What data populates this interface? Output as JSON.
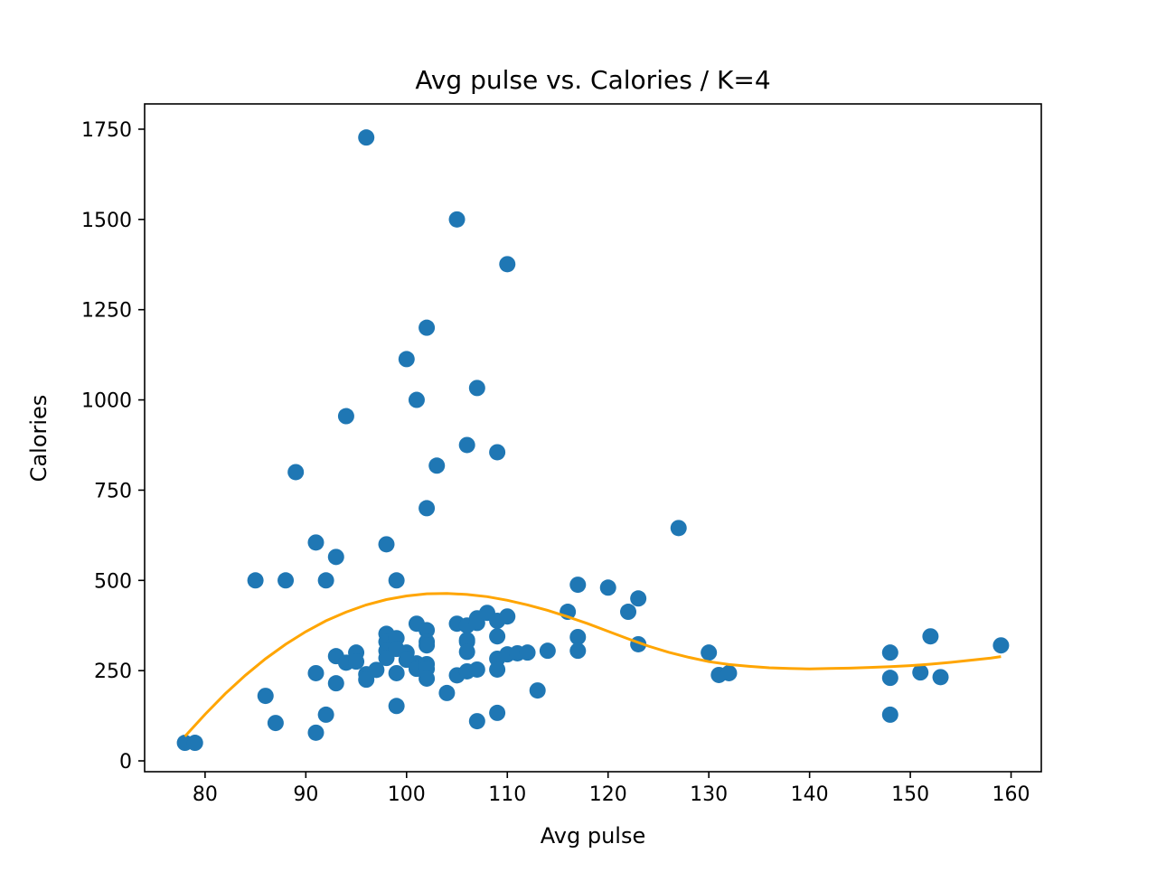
{
  "chart_data": {
    "type": "scatter",
    "title": "Avg pulse vs. Calories / K=4",
    "xlabel": "Avg pulse",
    "ylabel": "Calories",
    "xlim": [
      74,
      163
    ],
    "ylim": [
      -30,
      1820
    ],
    "xticks": [
      80,
      90,
      100,
      110,
      120,
      130,
      140,
      150,
      160
    ],
    "yticks": [
      0,
      250,
      500,
      750,
      1000,
      1250,
      1500,
      1750
    ],
    "grid": false,
    "colors": {
      "points": "#1f77b4",
      "curve": "#ffa500",
      "axes": "#000000"
    },
    "points": [
      [
        78,
        50
      ],
      [
        79,
        50
      ],
      [
        85,
        500
      ],
      [
        86,
        180
      ],
      [
        87,
        105
      ],
      [
        88,
        500
      ],
      [
        89,
        800
      ],
      [
        91,
        605
      ],
      [
        91,
        243
      ],
      [
        91,
        78
      ],
      [
        92,
        500
      ],
      [
        92,
        128
      ],
      [
        93,
        565
      ],
      [
        93,
        290
      ],
      [
        93,
        215
      ],
      [
        94,
        955
      ],
      [
        94,
        272
      ],
      [
        95,
        300
      ],
      [
        95,
        275
      ],
      [
        96,
        1727
      ],
      [
        96,
        240
      ],
      [
        96,
        225
      ],
      [
        97,
        252
      ],
      [
        98,
        600
      ],
      [
        98,
        352
      ],
      [
        98,
        330
      ],
      [
        98,
        305
      ],
      [
        98,
        285
      ],
      [
        99,
        500
      ],
      [
        99,
        340
      ],
      [
        99,
        310
      ],
      [
        99,
        243
      ],
      [
        99,
        152
      ],
      [
        100,
        1113
      ],
      [
        100,
        300
      ],
      [
        100,
        280
      ],
      [
        101,
        1000
      ],
      [
        101,
        380
      ],
      [
        101,
        270
      ],
      [
        101,
        255
      ],
      [
        102,
        1200
      ],
      [
        102,
        700
      ],
      [
        102,
        362
      ],
      [
        102,
        330
      ],
      [
        102,
        320
      ],
      [
        102,
        268
      ],
      [
        102,
        255
      ],
      [
        102,
        228
      ],
      [
        103,
        818
      ],
      [
        104,
        188
      ],
      [
        105,
        1500
      ],
      [
        105,
        380
      ],
      [
        105,
        237
      ],
      [
        106,
        875
      ],
      [
        106,
        375
      ],
      [
        106,
        335
      ],
      [
        106,
        330
      ],
      [
        106,
        302
      ],
      [
        106,
        248
      ],
      [
        107,
        1033
      ],
      [
        107,
        395
      ],
      [
        107,
        382
      ],
      [
        107,
        253
      ],
      [
        107,
        110
      ],
      [
        108,
        410
      ],
      [
        109,
        855
      ],
      [
        109,
        388
      ],
      [
        109,
        345
      ],
      [
        109,
        283
      ],
      [
        109,
        253
      ],
      [
        109,
        133
      ],
      [
        110,
        1376
      ],
      [
        110,
        400
      ],
      [
        110,
        295
      ],
      [
        111,
        298
      ],
      [
        112,
        300
      ],
      [
        113,
        195
      ],
      [
        114,
        305
      ],
      [
        116,
        413
      ],
      [
        117,
        488
      ],
      [
        117,
        343
      ],
      [
        117,
        305
      ],
      [
        120,
        480
      ],
      [
        122,
        413
      ],
      [
        123,
        450
      ],
      [
        123,
        323
      ],
      [
        127,
        645
      ],
      [
        130,
        300
      ],
      [
        131,
        238
      ],
      [
        132,
        243
      ],
      [
        148,
        300
      ],
      [
        148,
        230
      ],
      [
        148,
        128
      ],
      [
        151,
        245
      ],
      [
        152,
        345
      ],
      [
        153,
        232
      ],
      [
        159,
        320
      ]
    ],
    "fit": {
      "degree": 3,
      "x_range": [
        78,
        159
      ],
      "curve": [
        [
          78,
          68
        ],
        [
          80,
          129
        ],
        [
          82,
          186
        ],
        [
          84,
          237
        ],
        [
          86,
          283
        ],
        [
          88,
          323
        ],
        [
          90,
          358
        ],
        [
          92,
          388
        ],
        [
          94,
          412
        ],
        [
          96,
          432
        ],
        [
          98,
          447
        ],
        [
          100,
          457
        ],
        [
          102,
          463
        ],
        [
          104,
          464
        ],
        [
          106,
          461
        ],
        [
          108,
          455
        ],
        [
          110,
          445
        ],
        [
          112,
          432
        ],
        [
          114,
          417
        ],
        [
          116,
          399
        ],
        [
          118,
          380
        ],
        [
          120,
          359
        ],
        [
          122,
          338
        ],
        [
          124,
          318
        ],
        [
          126,
          301
        ],
        [
          128,
          287
        ],
        [
          130,
          275
        ],
        [
          132,
          267
        ],
        [
          134,
          262
        ],
        [
          136,
          258
        ],
        [
          138,
          256
        ],
        [
          140,
          255
        ],
        [
          142,
          256
        ],
        [
          144,
          257
        ],
        [
          146,
          259
        ],
        [
          148,
          261
        ],
        [
          150,
          264
        ],
        [
          152,
          268
        ],
        [
          154,
          273
        ],
        [
          156,
          279
        ],
        [
          158,
          285
        ],
        [
          159,
          289
        ]
      ]
    }
  }
}
